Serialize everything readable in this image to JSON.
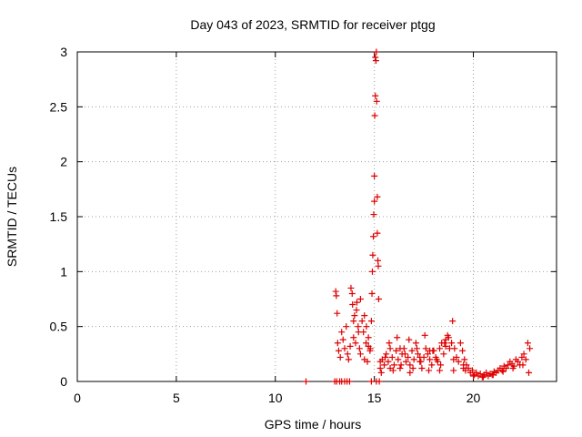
{
  "chart_data": {
    "type": "scatter",
    "title": "Day 043 of 2023, SRMTID for receiver ptgg",
    "xlabel": "GPS time / hours",
    "ylabel": "SRMTID / TECUs",
    "xlim": [
      0,
      24.2
    ],
    "ylim": [
      0,
      3
    ],
    "xticks": [
      0,
      5,
      10,
      15,
      20
    ],
    "yticks": [
      0,
      0.5,
      1,
      1.5,
      2,
      2.5,
      3
    ],
    "ytick_labels": [
      "0",
      "0.5",
      "1",
      "1.5",
      "2",
      "2.5",
      "3"
    ],
    "grid": true,
    "marker": "+",
    "color": "#e00000",
    "series": [
      {
        "name": "SRMTID",
        "x": [
          11.55,
          13.0,
          13.1,
          13.25,
          13.35,
          13.5,
          13.62,
          13.75,
          14.85,
          15.1,
          15.25,
          13.05,
          13.08,
          13.12,
          13.15,
          13.2,
          13.28,
          13.35,
          13.42,
          13.5,
          13.58,
          13.65,
          13.7,
          13.78,
          13.82,
          13.88,
          13.95,
          14.0,
          14.05,
          14.12,
          14.18,
          14.25,
          14.3,
          14.38,
          14.45,
          14.5,
          14.58,
          14.65,
          14.7,
          14.78,
          13.9,
          13.95,
          14.1,
          14.2,
          14.3,
          14.5,
          14.6,
          14.7,
          14.8,
          14.85,
          14.88,
          14.9,
          14.92,
          14.95,
          14.97,
          15.0,
          15.0,
          15.02,
          15.05,
          15.05,
          15.08,
          15.1,
          15.12,
          15.15,
          15.15,
          15.18,
          15.2,
          15.22,
          15.3,
          15.4,
          15.5,
          15.6,
          15.7,
          15.8,
          15.9,
          16.0,
          16.1,
          16.2,
          16.3,
          16.4,
          16.5,
          16.6,
          16.7,
          16.8,
          16.9,
          17.0,
          17.1,
          17.2,
          17.3,
          17.4,
          17.5,
          17.6,
          17.7,
          17.8,
          17.9,
          18.0,
          18.1,
          18.2,
          18.3,
          18.4,
          18.5,
          18.6,
          18.7,
          18.8,
          18.9,
          15.35,
          15.55,
          15.75,
          15.95,
          16.15,
          16.35,
          16.55,
          16.75,
          16.95,
          17.15,
          17.35,
          17.55,
          17.75,
          17.95,
          18.15,
          18.35,
          18.55,
          18.75,
          18.95,
          19.05,
          19.15,
          19.25,
          19.35,
          19.45,
          19.55,
          19.65,
          19.75,
          19.85,
          19.95,
          20.05,
          20.15,
          20.25,
          20.35,
          20.45,
          20.55,
          20.65,
          20.75,
          20.85,
          20.95,
          21.05,
          21.15,
          21.25,
          21.35,
          21.45,
          21.55,
          21.65,
          21.75,
          21.85,
          21.95,
          22.05,
          22.15,
          22.25,
          22.35,
          22.45,
          22.55,
          22.65,
          22.75,
          22.85,
          19.0,
          19.5,
          20.0,
          20.5,
          21.0,
          21.5,
          22.0,
          22.5,
          22.8,
          15.3,
          15.8,
          16.3,
          16.8,
          17.3,
          17.8,
          18.3,
          18.6,
          19.0,
          19.5,
          19.6
        ],
        "y": [
          0.0,
          0.0,
          0.0,
          0.0,
          0.0,
          0.0,
          0.0,
          0.0,
          0.0,
          0.0,
          0.0,
          0.82,
          0.78,
          0.62,
          0.35,
          0.28,
          0.22,
          0.45,
          0.38,
          0.3,
          0.5,
          0.25,
          0.2,
          0.32,
          0.85,
          0.8,
          0.4,
          0.6,
          0.35,
          0.72,
          0.5,
          0.3,
          0.25,
          0.55,
          0.45,
          0.2,
          0.35,
          0.18,
          0.4,
          0.28,
          0.7,
          0.55,
          0.65,
          0.45,
          0.75,
          0.6,
          0.5,
          0.32,
          0.3,
          0.55,
          0.8,
          1.0,
          1.15,
          1.32,
          1.52,
          1.64,
          1.87,
          2.42,
          2.6,
          2.95,
          2.92,
          3.0,
          2.55,
          1.68,
          1.35,
          1.1,
          1.05,
          0.75,
          0.12,
          0.2,
          0.15,
          0.25,
          0.18,
          0.3,
          0.22,
          0.15,
          0.28,
          0.2,
          0.12,
          0.25,
          0.3,
          0.18,
          0.22,
          0.15,
          0.28,
          0.2,
          0.35,
          0.25,
          0.18,
          0.12,
          0.22,
          0.3,
          0.25,
          0.2,
          0.15,
          0.28,
          0.22,
          0.18,
          0.3,
          0.35,
          0.25,
          0.38,
          0.42,
          0.3,
          0.35,
          0.08,
          0.22,
          0.35,
          0.1,
          0.4,
          0.15,
          0.25,
          0.38,
          0.12,
          0.3,
          0.18,
          0.42,
          0.1,
          0.28,
          0.2,
          0.15,
          0.35,
          0.4,
          0.55,
          0.3,
          0.22,
          0.18,
          0.35,
          0.28,
          0.2,
          0.15,
          0.12,
          0.08,
          0.1,
          0.06,
          0.08,
          0.05,
          0.07,
          0.04,
          0.06,
          0.08,
          0.05,
          0.07,
          0.06,
          0.09,
          0.08,
          0.1,
          0.12,
          0.1,
          0.14,
          0.12,
          0.15,
          0.18,
          0.16,
          0.14,
          0.2,
          0.18,
          0.15,
          0.22,
          0.25,
          0.2,
          0.35,
          0.3,
          0.1,
          0.12,
          0.05,
          0.04,
          0.06,
          0.09,
          0.12,
          0.15,
          0.08,
          0.18,
          0.12,
          0.3,
          0.08,
          0.22,
          0.28,
          0.1,
          0.32,
          0.2,
          0.15,
          0.1
        ]
      }
    ]
  }
}
